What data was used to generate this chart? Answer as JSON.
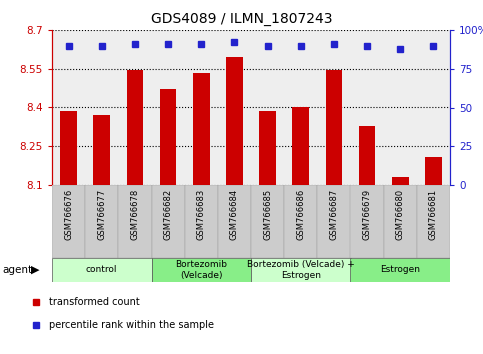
{
  "title": "GDS4089 / ILMN_1807243",
  "samples": [
    "GSM766676",
    "GSM766677",
    "GSM766678",
    "GSM766682",
    "GSM766683",
    "GSM766684",
    "GSM766685",
    "GSM766686",
    "GSM766687",
    "GSM766679",
    "GSM766680",
    "GSM766681"
  ],
  "bar_values": [
    8.385,
    8.37,
    8.545,
    8.47,
    8.535,
    8.595,
    8.385,
    8.4,
    8.545,
    8.33,
    8.13,
    8.21
  ],
  "percentile_values": [
    90,
    90,
    91,
    91,
    91,
    92,
    90,
    90,
    91,
    90,
    88,
    90
  ],
  "ymin": 8.1,
  "ymax": 8.7,
  "yticks": [
    8.1,
    8.25,
    8.4,
    8.55,
    8.7
  ],
  "ytick_labels": [
    "8.1",
    "8.25",
    "8.4",
    "8.55",
    "8.7"
  ],
  "right_yticks": [
    0,
    25,
    50,
    75,
    100
  ],
  "right_ytick_labels": [
    "0",
    "25",
    "50",
    "75",
    "100%"
  ],
  "bar_color": "#cc0000",
  "dot_color": "#2222cc",
  "bar_bottom": 8.1,
  "groups": [
    {
      "label": "control",
      "start": 0,
      "end": 3,
      "color": "#ccffcc"
    },
    {
      "label": "Bortezomib\n(Velcade)",
      "start": 3,
      "end": 6,
      "color": "#88ee88"
    },
    {
      "label": "Bortezomib (Velcade) +\nEstrogen",
      "start": 6,
      "end": 9,
      "color": "#ccffcc"
    },
    {
      "label": "Estrogen",
      "start": 9,
      "end": 12,
      "color": "#88ee88"
    }
  ],
  "legend_items": [
    {
      "label": "transformed count",
      "color": "#cc0000"
    },
    {
      "label": "percentile rank within the sample",
      "color": "#2222cc"
    }
  ],
  "left_axis_color": "#cc0000",
  "right_axis_color": "#2222cc",
  "bg_plot": "#eeeeee",
  "bg_xticklabels": "#cccccc",
  "figsize": [
    4.83,
    3.54
  ],
  "dpi": 100
}
